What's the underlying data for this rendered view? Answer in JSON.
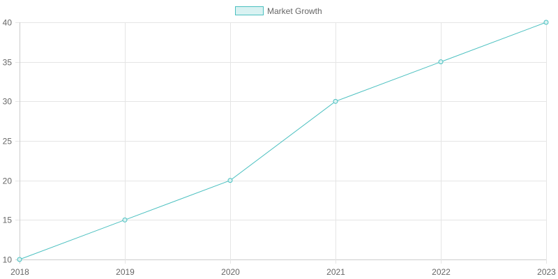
{
  "chart_data": {
    "type": "line",
    "title": "",
    "xlabel": "",
    "ylabel": "",
    "categories": [
      "2018",
      "2019",
      "2020",
      "2021",
      "2022",
      "2023"
    ],
    "series": [
      {
        "name": "Market Growth",
        "values": [
          10,
          15,
          20,
          30,
          35,
          40
        ],
        "color": "#4bc0c0",
        "fill": "#d9f2f2"
      }
    ],
    "ylim": [
      10,
      40
    ],
    "yticks": [
      10,
      15,
      20,
      25,
      30,
      35,
      40
    ],
    "grid": true,
    "legend_position": "top"
  },
  "legend": {
    "label": "Market Growth"
  },
  "colors": {
    "line": "#4bc0c0",
    "legend_fill": "#d9f2f2",
    "grid": "#e5e5e5",
    "axis": "#cccccc",
    "text": "#666666"
  }
}
